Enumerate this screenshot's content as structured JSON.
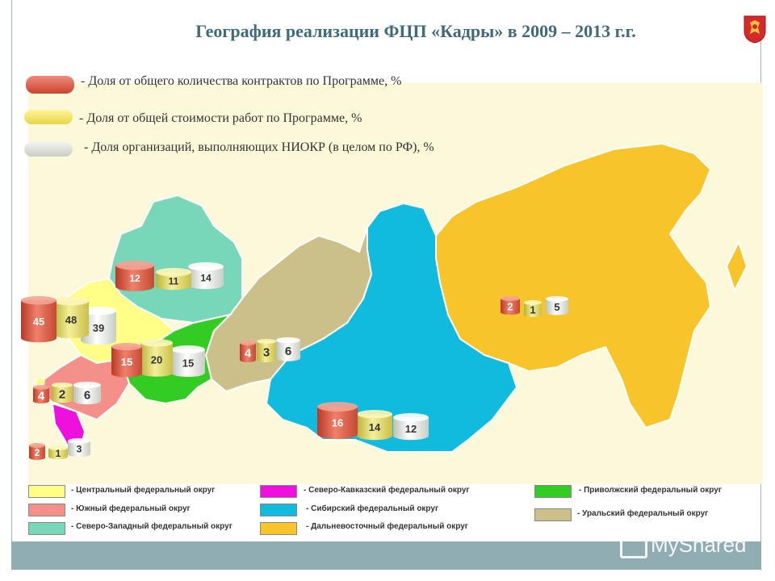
{
  "title": "География реализации ФЦП «Кадры» в 2009 – 2013 г.г.",
  "indicator_legend": [
    {
      "label": "- Доля от общего количества контрактов по Программе, %",
      "color": "#e0614a"
    },
    {
      "label": "- Доля от общей стоимости работ по Программе, %",
      "color": "#f3e56a"
    },
    {
      "label": "- Доля организаций,  выполняющих НИОКР  (в целом по РФ), %",
      "color": "#dfe4dc"
    }
  ],
  "district_legend": [
    {
      "label": "- Центральный федеральный округ",
      "color": "#ffff88"
    },
    {
      "label": "- Северо-Кавказский федеральный округ",
      "color": "#ee11dd"
    },
    {
      "label": "- Приволжский федеральный округ",
      "color": "#33cc22"
    },
    {
      "label": "- Южный федеральный округ",
      "color": "#f4908a"
    },
    {
      "label": "- Сибирский федеральный округ",
      "color": "#11bbdd"
    },
    {
      "label": "- Уральский федеральный округ",
      "color": "#cbc089"
    },
    {
      "label": "- Северо-Западный федеральный округ",
      "color": "#77d7b8"
    },
    {
      "label": "- Дальневосточный федеральный округ",
      "color": "#f7c52a"
    }
  ],
  "districts": [
    {
      "name": "Северо-Западный",
      "values": [
        "12",
        "11",
        "14"
      ]
    },
    {
      "name": "Центральный",
      "values": [
        "45",
        "48",
        "39"
      ]
    },
    {
      "name": "Приволжский",
      "values": [
        "15",
        "20",
        "15"
      ]
    },
    {
      "name": "Уральский",
      "values": [
        "4",
        "3",
        "6"
      ]
    },
    {
      "name": "Южный",
      "values": [
        "4",
        "2",
        "6"
      ]
    },
    {
      "name": "Северо-Кавказский",
      "values": [
        "2",
        "1",
        "3"
      ]
    },
    {
      "name": "Сибирский",
      "values": [
        "16",
        "14",
        "12"
      ]
    },
    {
      "name": "Дальневосточный",
      "values": [
        "2",
        "1",
        "5"
      ]
    }
  ],
  "watermark": "MyShared"
}
